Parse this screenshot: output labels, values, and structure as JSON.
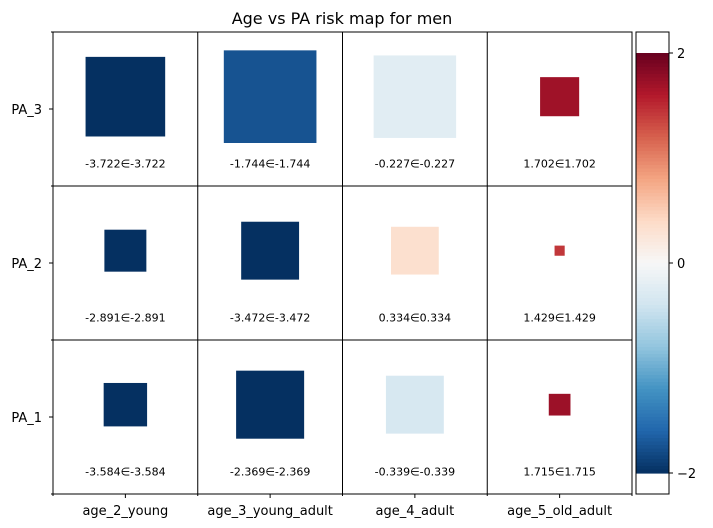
{
  "chart_data": {
    "type": "heatmap",
    "title": "Age vs PA risk map for men",
    "xlabel": "",
    "ylabel": "",
    "columns": [
      "age_2_young",
      "age_3_young_adult",
      "age_4_adult",
      "age_5_old_adult"
    ],
    "rows_top_to_bottom": [
      "PA_3",
      "PA_2",
      "PA_1"
    ],
    "cells": [
      {
        "row": "PA_3",
        "col": "age_2_young",
        "value": -3.722,
        "label": "-3.722∈-3.722",
        "square_fraction": 0.55
      },
      {
        "row": "PA_3",
        "col": "age_3_young_adult",
        "value": -1.744,
        "label": "-1.744∈-1.744",
        "square_fraction": 0.64
      },
      {
        "row": "PA_3",
        "col": "age_4_adult",
        "value": -0.227,
        "label": "-0.227∈-0.227",
        "square_fraction": 0.57
      },
      {
        "row": "PA_3",
        "col": "age_5_old_adult",
        "value": 1.702,
        "label": "1.702∈1.702",
        "square_fraction": 0.27
      },
      {
        "row": "PA_2",
        "col": "age_2_young",
        "value": -2.891,
        "label": "-2.891∈-2.891",
        "square_fraction": 0.29
      },
      {
        "row": "PA_2",
        "col": "age_3_young_adult",
        "value": -3.472,
        "label": "-3.472∈-3.472",
        "square_fraction": 0.4
      },
      {
        "row": "PA_2",
        "col": "age_4_adult",
        "value": 0.334,
        "label": "0.334∈0.334",
        "square_fraction": 0.33
      },
      {
        "row": "PA_2",
        "col": "age_5_old_adult",
        "value": 1.429,
        "label": "1.429∈1.429",
        "square_fraction": 0.07
      },
      {
        "row": "PA_1",
        "col": "age_2_young",
        "value": -3.584,
        "label": "-3.584∈-3.584",
        "square_fraction": 0.3
      },
      {
        "row": "PA_1",
        "col": "age_3_young_adult",
        "value": -2.369,
        "label": "-2.369∈-2.369",
        "square_fraction": 0.47
      },
      {
        "row": "PA_1",
        "col": "age_4_adult",
        "value": -0.339,
        "label": "-0.339∈-0.339",
        "square_fraction": 0.4
      },
      {
        "row": "PA_1",
        "col": "age_5_old_adult",
        "value": 1.715,
        "label": "1.715∈1.715",
        "square_fraction": 0.15
      }
    ],
    "colorbar": {
      "colormap": "RdBu_r",
      "range": [
        -2,
        2
      ],
      "axis_range": [
        -2.2,
        2.2
      ],
      "ticks": [
        {
          "value": 2,
          "label": "2"
        },
        {
          "value": 0,
          "label": "0"
        },
        {
          "value": -2,
          "label": "−2"
        }
      ]
    },
    "grid": true,
    "legend": "colorbar at right"
  }
}
